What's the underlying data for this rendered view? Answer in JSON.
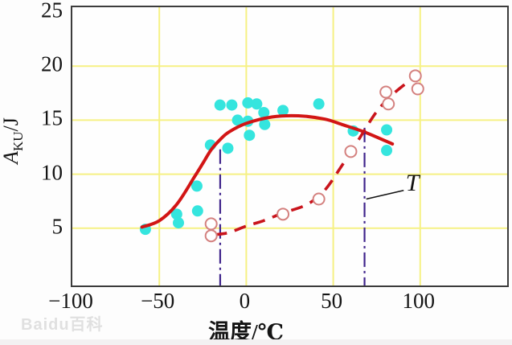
{
  "watermark": {
    "text": "Baidu百科"
  },
  "chart_data": {
    "type": "scatter",
    "title": "",
    "xlabel": "温度/℃",
    "ylabel": "AKU/J",
    "ylabel_parts": {
      "main": "A",
      "sub": "KU",
      "suffix": "/J"
    },
    "xlim": [
      -100,
      150
    ],
    "ylim": [
      -0.3,
      25.45
    ],
    "x_ticks": {
      "values": [
        -100,
        -50,
        0,
        50,
        100
      ],
      "labels": [
        "−100",
        "−50",
        "0",
        "50",
        "100"
      ]
    },
    "y_ticks": {
      "values": [
        5,
        10,
        15,
        20,
        25
      ],
      "labels": [
        "5",
        "10",
        "15",
        "20",
        "25"
      ]
    },
    "grid": {
      "color": "#f6f184",
      "x_lines": [
        -50,
        0,
        50,
        100
      ],
      "y_lines": [
        5,
        10,
        15,
        20
      ]
    },
    "colors": {
      "filled_marker": "#35e5de",
      "open_marker_stroke": "#d4817f",
      "solid_curve": "#d21515",
      "dashed_curve": "#c9141c",
      "reference_line": "#40258c",
      "annotation": "#111111"
    },
    "series": [
      {
        "name": "impact-energy-points",
        "kind": "scatter",
        "marker": "filled-circle",
        "points": [
          [
            -58,
            4.9
          ],
          [
            -40,
            6.3
          ],
          [
            -39,
            5.5
          ],
          [
            -28,
            6.6
          ],
          [
            -28.4,
            8.9
          ],
          [
            -20.6,
            12.7
          ],
          [
            -10.6,
            12.4
          ],
          [
            -15.1,
            16.4
          ],
          [
            -8.3,
            16.4
          ],
          [
            0.9,
            16.6
          ],
          [
            6.0,
            16.5
          ],
          [
            10.1,
            15.7
          ],
          [
            21.1,
            15.9
          ],
          [
            -5.0,
            15.0
          ],
          [
            0.9,
            14.9
          ],
          [
            10.6,
            14.6
          ],
          [
            1.8,
            13.6
          ],
          [
            41.7,
            16.5
          ],
          [
            61.5,
            14.0
          ],
          [
            80.7,
            14.1
          ],
          [
            80.7,
            12.2
          ]
        ]
      },
      {
        "name": "fibrous-fracture-points",
        "kind": "scatter",
        "marker": "open-circle",
        "points": [
          [
            -20.2,
            5.4
          ],
          [
            -20.2,
            4.3
          ],
          [
            21.1,
            6.3
          ],
          [
            41.7,
            7.7
          ],
          [
            60.1,
            12.1
          ],
          [
            80.3,
            17.6
          ],
          [
            81.7,
            16.5
          ],
          [
            97.2,
            19.1
          ],
          [
            98.6,
            17.9
          ]
        ]
      },
      {
        "name": "impact-energy-fit-curve",
        "kind": "line",
        "style": "solid",
        "points": [
          [
            -60,
            5.1
          ],
          [
            -50,
            5.7
          ],
          [
            -40,
            7.2
          ],
          [
            -30,
            9.7
          ],
          [
            -25,
            11.0
          ],
          [
            -20,
            12.3
          ],
          [
            -15,
            13.2
          ],
          [
            -10,
            13.9
          ],
          [
            0,
            14.7
          ],
          [
            15,
            15.3
          ],
          [
            30,
            15.4
          ],
          [
            45,
            15.1
          ],
          [
            55,
            14.6
          ],
          [
            68,
            13.9
          ],
          [
            84,
            12.8
          ]
        ]
      },
      {
        "name": "fracture-fit-curve",
        "kind": "line",
        "style": "dashed",
        "points": [
          [
            -18,
            4.4
          ],
          [
            -10,
            4.6
          ],
          [
            0,
            5.2
          ],
          [
            10,
            5.7
          ],
          [
            21,
            6.4
          ],
          [
            35,
            7.2
          ],
          [
            45,
            8.5
          ],
          [
            55,
            10.8
          ],
          [
            65,
            13.3
          ],
          [
            75,
            15.8
          ],
          [
            85,
            17.5
          ],
          [
            95,
            18.8
          ],
          [
            100,
            19.5
          ]
        ]
      }
    ],
    "reference_lines": [
      {
        "x": -15,
        "y_top": 12.3,
        "y_bottom": -0.3
      },
      {
        "x": 68,
        "y_top": 14.3,
        "y_bottom": -0.3
      }
    ],
    "annotation": {
      "label": "T",
      "label_pos": [
        95.5,
        9.0
      ],
      "arrow_from": [
        90.5,
        8.5
      ],
      "arrow_to": [
        69.0,
        7.7
      ]
    },
    "legend": null
  }
}
